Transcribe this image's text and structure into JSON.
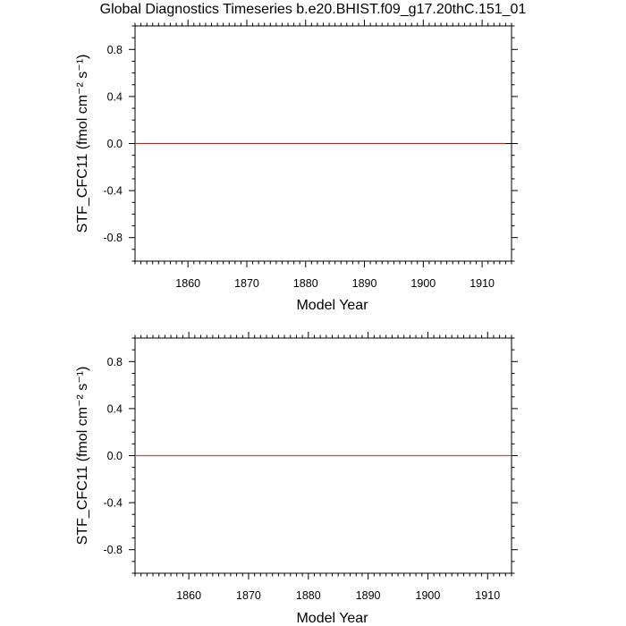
{
  "title": "Global Diagnostics Timeseries b.e20.BHIST.f09_g17.20thC.151_01",
  "chart_data": [
    {
      "type": "line",
      "xlabel": "Model Year",
      "ylabel": "STF_CFC11 (fmol cm⁻² s⁻¹)",
      "xlim": [
        1851,
        1915
      ],
      "ylim": [
        -1,
        1
      ],
      "xticks": [
        1860,
        1870,
        1880,
        1890,
        1900,
        1910
      ],
      "yticks": [
        0.8,
        0.4,
        0.0,
        -0.4,
        -0.8
      ],
      "ytick_labels": [
        "0.8",
        "0.4",
        "0.0",
        "-0.4",
        "-0.8"
      ],
      "zero_line": true,
      "series": [
        {
          "color": "#8b3a3a",
          "x": [
            1851,
            1914
          ],
          "y": [
            0.0,
            0.0
          ]
        }
      ]
    },
    {
      "type": "line",
      "xlabel": "Model Year",
      "ylabel": "STF_CFC11 (fmol cm⁻² s⁻¹)",
      "xlim": [
        1851,
        1914
      ],
      "ylim": [
        -1,
        1
      ],
      "xticks": [
        1860,
        1870,
        1880,
        1890,
        1900,
        1910
      ],
      "yticks": [
        0.8,
        0.4,
        0.0,
        -0.4,
        -0.8
      ],
      "ytick_labels": [
        "0.8",
        "0.4",
        "0.0",
        "-0.4",
        "-0.8"
      ],
      "zero_line": true,
      "series": [
        {
          "color": "#c0504d",
          "x": [
            1851,
            1914
          ],
          "y": [
            0.0,
            0.0
          ]
        }
      ]
    }
  ]
}
